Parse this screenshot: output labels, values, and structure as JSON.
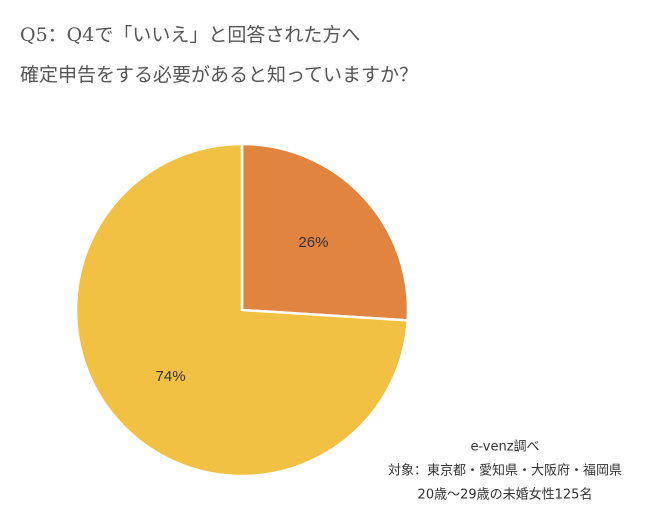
{
  "chart_data": {
    "type": "pie",
    "title": [
      "Q5：Q4で「いいえ」と回答された方へ",
      "確定申告をする必要があると知っていますか？"
    ],
    "values": [
      26,
      74
    ],
    "value_labels": [
      "26%",
      "74%"
    ],
    "colors": [
      "#e0843f",
      "#f2c043"
    ],
    "source": [
      "e-venz調べ",
      "対象：東京都・愛知県・大阪府・福岡県",
      "20歳～29歳の未婚女性125名"
    ]
  }
}
